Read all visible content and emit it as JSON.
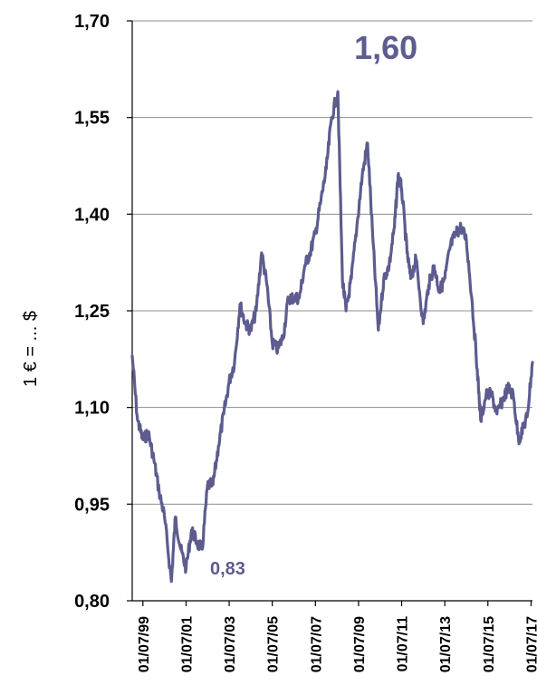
{
  "chart_data": {
    "type": "line",
    "ylabel": "1 € = ... $",
    "xlabel": "",
    "title": "",
    "ylim": [
      0.8,
      1.7
    ],
    "xlim": [
      "1999-01-01",
      "2017-07-25"
    ],
    "y_ticks": [
      "1,70",
      "1,55",
      "1,40",
      "1,25",
      "1,10",
      "0,95",
      "0,80"
    ],
    "y_tick_values": [
      1.7,
      1.55,
      1.4,
      1.25,
      1.1,
      0.95,
      0.8
    ],
    "x_ticks": [
      "01/07/99",
      "01/07/01",
      "01/07/03",
      "01/07/05",
      "01/07/07",
      "01/07/09",
      "01/07/11",
      "01/07/13",
      "01/07/15",
      "01/07/17"
    ],
    "x_tick_dates": [
      "1999-07-01",
      "2001-07-01",
      "2003-07-01",
      "2005-07-01",
      "2007-07-01",
      "2009-07-01",
      "2011-07-01",
      "2013-07-01",
      "2015-07-01",
      "2017-07-01"
    ],
    "grid": "horizontal",
    "line_color": "#5c5c8e",
    "annotations": [
      {
        "text": "1,60",
        "date": "2008-07-15",
        "value": 1.6
      },
      {
        "text": "0,83",
        "date": "2000-10-26",
        "value": 0.83
      }
    ],
    "series": [
      {
        "x": [
          "1999-01-01",
          "1999-04-01",
          "1999-07-01",
          "1999-10-01",
          "2000-01-01",
          "2000-04-01",
          "2000-07-01",
          "2000-10-26",
          "2001-01-01",
          "2001-04-01",
          "2001-07-01",
          "2001-10-01",
          "2002-01-01",
          "2002-04-01",
          "2002-07-01",
          "2002-10-01",
          "2003-01-01",
          "2003-04-01",
          "2003-07-01",
          "2003-10-01",
          "2004-01-01",
          "2004-04-01",
          "2004-07-01",
          "2004-10-01",
          "2005-01-01",
          "2005-04-01",
          "2005-07-01",
          "2005-10-01",
          "2006-01-01",
          "2006-04-01",
          "2006-07-01",
          "2006-10-01",
          "2007-01-01",
          "2007-04-01",
          "2007-07-01",
          "2007-10-01",
          "2008-01-01",
          "2008-04-01",
          "2008-07-15",
          "2008-10-01",
          "2008-12-01",
          "2009-03-01",
          "2009-06-01",
          "2009-09-01",
          "2009-12-01",
          "2010-03-01",
          "2010-06-01",
          "2010-09-01",
          "2010-12-01",
          "2011-03-01",
          "2011-05-01",
          "2011-07-01",
          "2011-10-01",
          "2011-12-01",
          "2012-03-01",
          "2012-07-01",
          "2012-10-01",
          "2013-01-01",
          "2013-04-01",
          "2013-07-01",
          "2013-10-01",
          "2014-01-01",
          "2014-04-01",
          "2014-07-01",
          "2014-10-01",
          "2015-01-01",
          "2015-03-01",
          "2015-06-01",
          "2015-09-01",
          "2015-12-01",
          "2016-03-01",
          "2016-06-01",
          "2016-09-01",
          "2016-12-01",
          "2017-03-01",
          "2017-05-01",
          "2017-07-25"
        ],
        "values": [
          1.18,
          1.08,
          1.05,
          1.06,
          1.02,
          0.97,
          0.93,
          0.83,
          0.93,
          0.88,
          0.85,
          0.91,
          0.89,
          0.88,
          0.98,
          0.98,
          1.04,
          1.09,
          1.14,
          1.17,
          1.26,
          1.23,
          1.22,
          1.25,
          1.34,
          1.29,
          1.2,
          1.19,
          1.21,
          1.27,
          1.27,
          1.27,
          1.32,
          1.34,
          1.37,
          1.42,
          1.47,
          1.55,
          1.59,
          1.3,
          1.25,
          1.3,
          1.38,
          1.46,
          1.51,
          1.36,
          1.22,
          1.3,
          1.32,
          1.38,
          1.46,
          1.44,
          1.34,
          1.3,
          1.33,
          1.23,
          1.29,
          1.32,
          1.28,
          1.3,
          1.35,
          1.37,
          1.38,
          1.36,
          1.27,
          1.16,
          1.08,
          1.12,
          1.12,
          1.09,
          1.11,
          1.13,
          1.12,
          1.05,
          1.07,
          1.09,
          1.17
        ]
      }
    ]
  }
}
